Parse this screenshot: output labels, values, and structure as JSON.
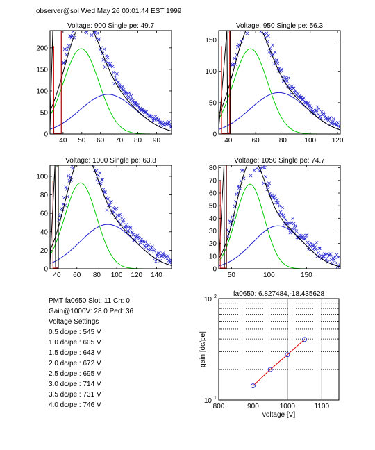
{
  "header": "observer@sol Wed May 26 00:01:44 EST 1999",
  "colors": {
    "data": "#1f1fcc",
    "total_fit": "#000000",
    "green_fit": "#00cc00",
    "blue_fit": "#1f1fcc",
    "cut": "#cc0000",
    "gain_line": "#dd0000",
    "gain_marker": "#2a2acc"
  },
  "chart_data": [
    {
      "type": "scatter",
      "title": "Voltage: 900 Single pe: 49.7",
      "xlim": [
        33,
        98
      ],
      "ylim": [
        0,
        240
      ],
      "xticks": [
        40,
        50,
        60,
        70,
        80,
        90
      ],
      "yticks": [
        0,
        50,
        100,
        150,
        200
      ],
      "cut_lines": [
        35,
        39
      ],
      "spike": {
        "x": 34.5,
        "y": 240
      },
      "fit": {
        "g1": {
          "amp": 198,
          "mean": 49.7,
          "sigma": 9.5
        },
        "g2": {
          "amp": 92,
          "mean": 64,
          "sigma": 15
        }
      }
    },
    {
      "type": "scatter",
      "title": "Voltage: 950 Single pe: 56.3",
      "xlim": [
        33,
        122
      ],
      "ylim": [
        0,
        165
      ],
      "xticks": [
        40,
        60,
        80,
        100,
        120
      ],
      "yticks": [
        0,
        50,
        100,
        150
      ],
      "cut_lines": [
        35,
        41
      ],
      "spike": {
        "x": 39,
        "y": 165
      },
      "fit": {
        "g1": {
          "amp": 136,
          "mean": 56.3,
          "sigma": 12.5
        },
        "g2": {
          "amp": 66,
          "mean": 77,
          "sigma": 21
        }
      }
    },
    {
      "type": "scatter",
      "title": "Voltage: 1000 Single pe: 63.8",
      "xlim": [
        33,
        155
      ],
      "ylim": [
        0,
        112
      ],
      "xticks": [
        40,
        60,
        80,
        100,
        120,
        140
      ],
      "yticks": [
        0,
        20,
        40,
        60,
        80,
        100
      ],
      "cut_lines": [
        36,
        41
      ],
      "spike": {
        "x": 38,
        "y": 112
      },
      "fit": {
        "g1": {
          "amp": 93,
          "mean": 63.8,
          "sigma": 16
        },
        "g2": {
          "amp": 48,
          "mean": 91,
          "sigma": 28
        }
      }
    },
    {
      "type": "scatter",
      "title": "Voltage: 1050 Single pe: 74.7",
      "xlim": [
        33,
        195
      ],
      "ylim": [
        0,
        82
      ],
      "xticks": [
        50,
        100,
        150
      ],
      "yticks": [
        0,
        10,
        20,
        30,
        40,
        50,
        60,
        70,
        80
      ],
      "cut_lines": [
        35,
        43
      ],
      "spike": {
        "x": 40,
        "y": 82
      },
      "fit": {
        "g1": {
          "amp": 67,
          "mean": 74.7,
          "sigma": 19
        },
        "g2": {
          "amp": 34,
          "mean": 112,
          "sigma": 34
        }
      }
    },
    {
      "type": "line",
      "title": "fa0650: 6.827484,-18.435628",
      "xlabel": "voltage [V]",
      "ylabel": "gain [dc/pe]",
      "xlim": [
        800,
        1150
      ],
      "ylim": [
        10,
        100
      ],
      "yscale": "log",
      "xticks": [
        800,
        900,
        1000,
        1100
      ],
      "yticks": [
        10,
        100
      ],
      "ytick_labels": [
        "10^1",
        "10^2"
      ],
      "grid": "x major solid, y minor dotted",
      "x": [
        900,
        950,
        1000,
        1050
      ],
      "y": [
        13.8,
        20.0,
        28.0,
        39.5
      ]
    }
  ],
  "info": {
    "pmt_line": "PMT fa0650 Slot: 11 Ch: 0",
    "gain_line": "Gain@1000V: 28.0 Ped: 36",
    "settings_title": "Voltage Settings",
    "settings": [
      "0.5 dc/pe : 545 V",
      "1.0 dc/pe : 605 V",
      "1.5 dc/pe : 643 V",
      "2.0 dc/pe : 672 V",
      "2.5 dc/pe : 695 V",
      "3.0 dc/pe : 714 V",
      "3.5 dc/pe : 731 V",
      "4.0 dc/pe : 746 V"
    ]
  }
}
